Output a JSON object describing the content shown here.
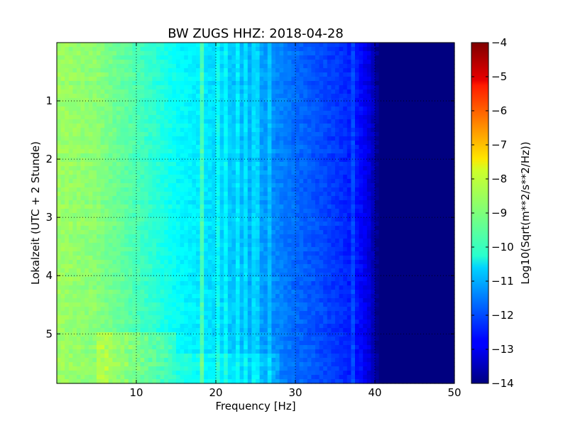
{
  "chart_data": {
    "type": "heatmap",
    "title": "BW ZUGS HHZ: 2018-04-28",
    "xlabel": "Frequency [Hz]",
    "ylabel": "Lokalzeit (UTC + 2 Stunde)",
    "xlim": [
      0,
      50
    ],
    "ylim": [
      5.85,
      0
    ],
    "x_ticks": [
      10,
      20,
      30,
      40,
      50
    ],
    "y_ticks": [
      1,
      2,
      3,
      4,
      5
    ],
    "grid": true,
    "colormap": "jet",
    "colorbar": {
      "label": "Log10(Sqrt(m**2/s**2/Hz))",
      "range": [
        -14,
        -4
      ],
      "ticks": [
        -4,
        -5,
        -6,
        -7,
        -8,
        -9,
        -10,
        -11,
        -12,
        -13,
        -14
      ]
    },
    "profile_description": "Amplitude highest (~-8.5) at low frequencies, decreasing with frequency to ~-12.5 near 38 Hz, then floor (-14) above ~40 Hz",
    "frequency_profile": {
      "x": [
        0,
        5,
        10,
        15,
        20,
        25,
        30,
        35,
        38,
        39.5,
        40.5,
        50
      ],
      "values": [
        -8.7,
        -8.9,
        -9.5,
        -10.2,
        -10.6,
        -11.1,
        -11.7,
        -12.2,
        -12.6,
        -13.2,
        -14,
        -14
      ]
    },
    "spectral_lines_hz": [
      18.1,
      18.4,
      20.3,
      21.3,
      22.6,
      23.7,
      24.6,
      25.2,
      26.8,
      37.1
    ],
    "elevated_segments": [
      {
        "t": [
          4.9,
          5.85
        ],
        "f": [
          5,
          15
        ],
        "delta": 0.6
      },
      {
        "t": [
          5.3,
          5.85
        ],
        "f": [
          15,
          28
        ],
        "delta": 0.4
      }
    ]
  }
}
